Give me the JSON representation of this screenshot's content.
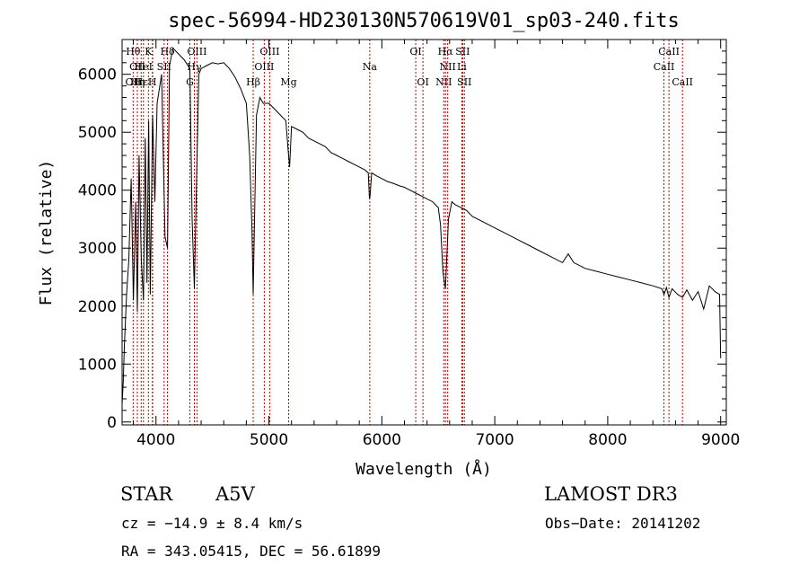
{
  "chart_data": {
    "type": "line",
    "title": "spec-56994-HD230130N570619V01_sp03-240.fits",
    "xlabel": "Wavelength (Å)",
    "ylabel": "Flux (relative)",
    "xlim": [
      3700,
      9050
    ],
    "ylim": [
      -50,
      6600
    ],
    "xticks": [
      4000,
      5000,
      6000,
      7000,
      8000,
      9000
    ],
    "yticks": [
      0,
      1000,
      2000,
      3000,
      4000,
      5000,
      6000
    ],
    "grid": false,
    "series": [
      {
        "name": "spectrum",
        "x": [
          3700,
          3710,
          3720,
          3740,
          3760,
          3780,
          3800,
          3820,
          3835,
          3850,
          3870,
          3889,
          3905,
          3920,
          3935,
          3950,
          3970,
          3990,
          4010,
          4050,
          4080,
          4102,
          4120,
          4150,
          4200,
          4250,
          4300,
          4320,
          4340,
          4355,
          4380,
          4400,
          4450,
          4500,
          4550,
          4600,
          4650,
          4700,
          4750,
          4800,
          4830,
          4850,
          4861,
          4872,
          4890,
          4920,
          4950,
          5000,
          5050,
          5100,
          5150,
          5170,
          5183,
          5200,
          5250,
          5300,
          5350,
          5400,
          5450,
          5500,
          5550,
          5600,
          5650,
          5700,
          5750,
          5800,
          5850,
          5880,
          5890,
          5896,
          5910,
          5950,
          6000,
          6050,
          6100,
          6150,
          6200,
          6250,
          6300,
          6350,
          6400,
          6450,
          6500,
          6520,
          6540,
          6555,
          6563,
          6572,
          6590,
          6620,
          6650,
          6700,
          6750,
          6800,
          6900,
          7000,
          7100,
          7200,
          7300,
          7400,
          7500,
          7600,
          7650,
          7700,
          7750,
          7800,
          7900,
          8000,
          8100,
          8200,
          8300,
          8400,
          8480,
          8498,
          8520,
          8542,
          8570,
          8620,
          8662,
          8700,
          8750,
          8800,
          8850,
          8900,
          8950,
          8990,
          9000
        ],
        "values": [
          300,
          700,
          1300,
          2200,
          2800,
          4200,
          2100,
          3800,
          1900,
          4600,
          2800,
          2100,
          4900,
          2400,
          5200,
          2200,
          5300,
          3800,
          5500,
          6000,
          3200,
          3000,
          6150,
          6450,
          6350,
          6250,
          6100,
          3500,
          2300,
          3800,
          6000,
          6100,
          6150,
          6200,
          6180,
          6200,
          6100,
          5950,
          5750,
          5500,
          4600,
          3300,
          2200,
          3400,
          5300,
          5600,
          5500,
          5500,
          5400,
          5300,
          5200,
          4700,
          4400,
          5100,
          5050,
          5000,
          4900,
          4850,
          4800,
          4750,
          4650,
          4600,
          4550,
          4500,
          4450,
          4400,
          4350,
          4300,
          3850,
          3900,
          4300,
          4250,
          4200,
          4150,
          4120,
          4080,
          4050,
          4000,
          3950,
          3900,
          3850,
          3800,
          3700,
          3400,
          2600,
          2400,
          2300,
          2700,
          3500,
          3800,
          3750,
          3700,
          3650,
          3550,
          3450,
          3350,
          3250,
          3150,
          3050,
          2950,
          2850,
          2750,
          2900,
          2750,
          2700,
          2650,
          2600,
          2550,
          2500,
          2450,
          2400,
          2350,
          2300,
          2200,
          2320,
          2150,
          2300,
          2200,
          2150,
          2280,
          2100,
          2250,
          1950,
          2350,
          2250,
          2200,
          1100
        ]
      }
    ],
    "lines": [
      {
        "x": 3798,
        "label": "Hθ"
      },
      {
        "x": 3835,
        "label": "Hη"
      },
      {
        "x": 3869,
        "label": "OII"
      },
      {
        "x": 3889,
        "label": "HeI"
      },
      {
        "x": 3933,
        "label": "K"
      },
      {
        "x": 3968,
        "label": "H"
      },
      {
        "x": 3970,
        "label": "Hε"
      },
      {
        "x": 4072,
        "label": "SII"
      },
      {
        "x": 4102,
        "label": "Hδ"
      },
      {
        "x": 4300,
        "label": "G"
      },
      {
        "x": 4340,
        "label": "Hγ"
      },
      {
        "x": 4363,
        "label": "OIII"
      },
      {
        "x": 4861,
        "label": "Hβ"
      },
      {
        "x": 4959,
        "label": "OIII"
      },
      {
        "x": 5007,
        "label": "OIII"
      },
      {
        "x": 5175,
        "label": "Mg"
      },
      {
        "x": 5893,
        "label": "Na"
      },
      {
        "x": 6300,
        "label": "OI"
      },
      {
        "x": 6364,
        "label": "OI"
      },
      {
        "x": 6548,
        "label": "NII"
      },
      {
        "x": 6563,
        "label": "Hα"
      },
      {
        "x": 6583,
        "label": "NII"
      },
      {
        "x": 6708,
        "label": "Li"
      },
      {
        "x": 6716,
        "label": "SII"
      },
      {
        "x": 6731,
        "label": "SII"
      },
      {
        "x": 8498,
        "label": "CaII"
      },
      {
        "x": 8542,
        "label": "CaII"
      },
      {
        "x": 8662,
        "label": "CaII"
      }
    ],
    "line_labels": [
      {
        "text": "Hθ",
        "x": 3798,
        "row": 1
      },
      {
        "text": "K",
        "x": 3933,
        "row": 1
      },
      {
        "text": "Hδ",
        "x": 4102,
        "row": 1
      },
      {
        "text": "OIII",
        "x": 4363,
        "row": 1
      },
      {
        "text": "OIII",
        "x": 5007,
        "row": 1
      },
      {
        "text": "OI",
        "x": 6300,
        "row": 1
      },
      {
        "text": "Hα",
        "x": 6563,
        "row": 1
      },
      {
        "text": "SII",
        "x": 6716,
        "row": 1
      },
      {
        "text": "CaII",
        "x": 8542,
        "row": 1
      },
      {
        "text": "OII",
        "x": 3835,
        "row": 2
      },
      {
        "text": "HeI",
        "x": 3889,
        "row": 2
      },
      {
        "text": "SII",
        "x": 4072,
        "row": 2
      },
      {
        "text": "Hγ",
        "x": 4340,
        "row": 2
      },
      {
        "text": "OIII",
        "x": 4959,
        "row": 2
      },
      {
        "text": "Na",
        "x": 5893,
        "row": 2
      },
      {
        "text": "NII",
        "x": 6583,
        "row": 2
      },
      {
        "text": "Li",
        "x": 6708,
        "row": 2
      },
      {
        "text": "CaII",
        "x": 8498,
        "row": 2
      },
      {
        "text": "OII",
        "x": 3798,
        "row": 3
      },
      {
        "text": "Hε",
        "x": 3869,
        "row": 3
      },
      {
        "text": "Hη",
        "x": 3835,
        "row": 3
      },
      {
        "text": "H",
        "x": 3968,
        "row": 3
      },
      {
        "text": "G",
        "x": 4300,
        "row": 3
      },
      {
        "text": "Hβ",
        "x": 4861,
        "row": 3
      },
      {
        "text": "Mg",
        "x": 5175,
        "row": 3
      },
      {
        "text": "OI",
        "x": 6364,
        "row": 3
      },
      {
        "text": "NII",
        "x": 6548,
        "row": 3
      },
      {
        "text": "SII",
        "x": 6731,
        "row": 3
      },
      {
        "text": "CaII",
        "x": 8662,
        "row": 3
      }
    ],
    "colors": {
      "spectrum": "#000000",
      "lines": "#c00000"
    }
  },
  "info": {
    "class_label": "STAR",
    "subclass": "A5V",
    "survey": "LAMOST DR3",
    "cz": "cz = −14.9 ± 8.4 km/s",
    "obs_date": "Obs−Date: 20141202",
    "coords": "RA = 343.05415, DEC =  56.61899"
  }
}
